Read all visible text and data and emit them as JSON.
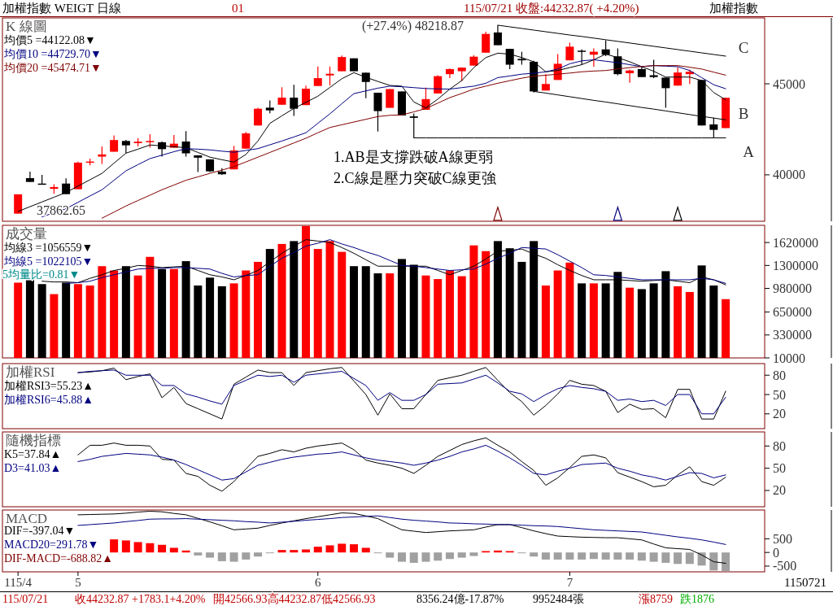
{
  "chart_data": [
    {
      "type": "candlestick",
      "title": "K 線圖",
      "legend": "top left",
      "tick_labels": "y",
      "ylim": [
        37450,
        48620
      ],
      "yticks": [
        40000,
        45000
      ],
      "categories": [
        null,
        null,
        null,
        null,
        null,
        null,
        null,
        null,
        null,
        null,
        null,
        null,
        null,
        null,
        null,
        null,
        null,
        null,
        null,
        null,
        null,
        null,
        null,
        null,
        null,
        null,
        null,
        null,
        null,
        null,
        null,
        null,
        null,
        null,
        null,
        null,
        null,
        null,
        null,
        null,
        null,
        null,
        null,
        null,
        null,
        null,
        null,
        null,
        null,
        null,
        null,
        null,
        null,
        null,
        null,
        null,
        null,
        null,
        null,
        null
      ],
      "ohlc": [
        [
          37870,
          38930,
          37862.65,
          38930
        ],
        [
          39820,
          40180,
          39610,
          39610
        ],
        [
          39520,
          40000,
          39510,
          39510
        ],
        [
          39230,
          39480,
          38960,
          39330
        ],
        [
          39520,
          39810,
          38940,
          38940
        ],
        [
          39210,
          40720,
          39210,
          40670
        ],
        [
          40670,
          40890,
          40520,
          40730
        ],
        [
          41000,
          41560,
          40600,
          41120
        ],
        [
          41270,
          42160,
          41270,
          41910
        ],
        [
          41860,
          41920,
          41190,
          41620
        ],
        [
          41740,
          42010,
          41560,
          41820
        ],
        [
          41800,
          42230,
          41490,
          41860
        ],
        [
          41790,
          41830,
          41000,
          41410
        ],
        [
          41490,
          42190,
          41490,
          41710
        ],
        [
          41830,
          42400,
          41000,
          41180
        ],
        [
          41070,
          41070,
          40150,
          40940
        ],
        [
          40850,
          40850,
          40150,
          40190
        ],
        [
          40180,
          40370,
          40000,
          40030
        ],
        [
          40300,
          41590,
          40300,
          41340
        ],
        [
          41440,
          42350,
          41440,
          42280
        ],
        [
          42710,
          43680,
          42710,
          43630
        ],
        [
          43690,
          44090,
          43380,
          43540
        ],
        [
          43850,
          44810,
          43850,
          44240
        ],
        [
          44240,
          44940,
          43240,
          43630
        ],
        [
          43830,
          44900,
          43830,
          44730
        ],
        [
          44880,
          45950,
          44880,
          45310
        ],
        [
          45460,
          45950,
          44910,
          45550
        ],
        [
          45690,
          46550,
          45690,
          46470
        ],
        [
          46400,
          46400,
          45690,
          45690
        ],
        [
          45610,
          45610,
          44210,
          45100
        ],
        [
          44510,
          44510,
          42380,
          43500
        ],
        [
          43680,
          44710,
          43680,
          44710
        ],
        [
          44580,
          44580,
          43260,
          43260
        ],
        [
          43210,
          43370,
          42030,
          43130
        ],
        [
          43570,
          44790,
          43570,
          44160
        ],
        [
          44470,
          45470,
          44470,
          45420
        ],
        [
          45530,
          45840,
          45310,
          45810
        ],
        [
          45690,
          45890,
          45150,
          45890
        ],
        [
          46000,
          46570,
          46000,
          46490
        ],
        [
          46710,
          47860,
          46710,
          47740
        ],
        [
          47820,
          48218.87,
          47120,
          47120
        ],
        [
          46920,
          46920,
          45810,
          46050
        ],
        [
          46370,
          46760,
          46050,
          46290
        ],
        [
          46210,
          46260,
          44520,
          44580
        ],
        [
          44630,
          45530,
          44630,
          44990
        ],
        [
          45210,
          46630,
          45210,
          46100
        ],
        [
          46290,
          47260,
          46290,
          47040
        ],
        [
          46820,
          46890,
          46050,
          46780
        ],
        [
          46600,
          46950,
          45940,
          46760
        ],
        [
          46890,
          47390,
          46520,
          46600
        ],
        [
          46510,
          46950,
          45470,
          45530
        ],
        [
          45580,
          45780,
          45060,
          45730
        ],
        [
          45810,
          45940,
          45370,
          45370
        ],
        [
          45470,
          46320,
          45310,
          45370
        ],
        [
          45340,
          45340,
          43680,
          44760
        ],
        [
          44900,
          45890,
          44900,
          45620
        ],
        [
          45530,
          45780,
          44990,
          45660
        ],
        [
          45210,
          45210,
          42710,
          42710
        ],
        [
          42770,
          43130,
          42030,
          42470
        ],
        [
          42566.93,
          44232.87,
          42566.93,
          44232.87
        ]
      ],
      "colors": [
        "#ff0000",
        "#000000",
        "#000000",
        "#ff0000",
        "#000000",
        "#ff0000",
        "#ff0000",
        "#ff0000",
        "#ff0000",
        "#000000",
        "#ff0000",
        "#ff0000",
        "#000000",
        "#ff0000",
        "#000000",
        "#000000",
        "#000000",
        "#000000",
        "#ff0000",
        "#ff0000",
        "#ff0000",
        "#000000",
        "#ff0000",
        "#000000",
        "#ff0000",
        "#ff0000",
        "#ff0000",
        "#ff0000",
        "#000000",
        "#000000",
        "#000000",
        "#ff0000",
        "#000000",
        "#000000",
        "#ff0000",
        "#ff0000",
        "#ff0000",
        "#ff0000",
        "#ff0000",
        "#ff0000",
        "#000000",
        "#000000",
        "#000000",
        "#000000",
        "#ff0000",
        "#ff0000",
        "#ff0000",
        "#000000",
        "#ff0000",
        "#000000",
        "#000000",
        "#ff0000",
        "#000000",
        "#000000",
        "#000000",
        "#ff0000",
        "#ff0000",
        "#000000",
        "#000000",
        "#ff0000"
      ],
      "series": [
        {
          "name": "均價5 =44122.08▼",
          "type": "line",
          "color": "#000000",
          "values": [
            37990,
            38250,
            38510,
            38770,
            39030,
            39380,
            39730,
            40080,
            40640,
            41190,
            41410,
            41640,
            41590,
            41540,
            41490,
            41230,
            40970,
            40830,
            40700,
            41120,
            41860,
            42830,
            43240,
            43650,
            43980,
            44320,
            44800,
            45280,
            45610,
            45360,
            45130,
            44910,
            44870,
            44000,
            43680,
            44160,
            44710,
            45180,
            45890,
            46440,
            46680,
            46630,
            46440,
            46210,
            45660,
            45730,
            45890,
            46050,
            46320,
            46630,
            46440,
            46210,
            45940,
            45690,
            45370,
            45370,
            45370,
            45180,
            44520,
            44122.08
          ]
        },
        {
          "name": "均價10 =44729.70▼",
          "type": "line",
          "color": "#000080",
          "values": [
            null,
            null,
            37690,
            37920,
            38140,
            38490,
            38840,
            39180,
            39700,
            40220,
            40560,
            40890,
            41080,
            41270,
            41440,
            41410,
            41370,
            41300,
            41240,
            41340,
            41440,
            41650,
            41860,
            42080,
            42310,
            42830,
            43350,
            43910,
            44460,
            44610,
            44760,
            44870,
            44840,
            44790,
            44740,
            44720,
            44710,
            44790,
            44870,
            45030,
            45340,
            45430,
            45530,
            45580,
            45660,
            45810,
            46100,
            46260,
            46320,
            46240,
            46160,
            46050,
            45940,
            46000,
            45970,
            45940,
            45730,
            45340,
            44950,
            44729.7
          ]
        },
        {
          "name": "均價20 =45474.71▼",
          "type": "line",
          "color": "#800000",
          "values": [
            null,
            null,
            null,
            null,
            null,
            null,
            null,
            37620,
            37950,
            38290,
            38590,
            38880,
            39180,
            39440,
            39700,
            39890,
            40080,
            40260,
            40450,
            40710,
            40970,
            41230,
            41490,
            41750,
            42010,
            42310,
            42600,
            42750,
            42900,
            43050,
            43200,
            43270,
            43290,
            43460,
            43640,
            43940,
            44240,
            44470,
            44710,
            44870,
            45030,
            45170,
            45310,
            45420,
            45470,
            45530,
            45590,
            45660,
            45700,
            45730,
            45810,
            45890,
            45950,
            46000,
            46000,
            46000,
            45910,
            45810,
            45640,
            45474.71
          ]
        },
        {
          "type": "line",
          "color": "#000000",
          "values": [
            null,
            null,
            null,
            null,
            null,
            null,
            null,
            null,
            null,
            null,
            null,
            null,
            null,
            null,
            null,
            null,
            null,
            null,
            null,
            null,
            null,
            null,
            null,
            null,
            null,
            null,
            null,
            null,
            null,
            null,
            null,
            null,
            null,
            null,
            null,
            null,
            null,
            null,
            null,
            null,
            48218.87,
            48130,
            48040,
            47950,
            47860,
            47770,
            47680,
            47600,
            47510,
            47420,
            47330,
            47240,
            47150,
            47060,
            46970,
            46880,
            46790,
            46700,
            46610,
            46520
          ]
        },
        {
          "type": "line",
          "color": "#000000",
          "values": [
            null,
            null,
            null,
            null,
            null,
            null,
            null,
            null,
            null,
            null,
            null,
            null,
            null,
            null,
            null,
            null,
            null,
            null,
            null,
            null,
            null,
            null,
            null,
            null,
            null,
            null,
            null,
            null,
            null,
            null,
            null,
            null,
            null,
            null,
            null,
            null,
            null,
            null,
            null,
            null,
            null,
            null,
            null,
            44580,
            44490,
            44390,
            44290,
            44190,
            44090,
            44000,
            43900,
            43800,
            43700,
            43610,
            43510,
            43410,
            43310,
            43210,
            43120,
            43020
          ]
        },
        {
          "type": "line",
          "color": "#000000",
          "values": [
            null,
            null,
            null,
            null,
            null,
            null,
            null,
            null,
            null,
            null,
            null,
            null,
            null,
            null,
            null,
            null,
            null,
            null,
            null,
            null,
            null,
            null,
            null,
            null,
            null,
            null,
            null,
            null,
            null,
            null,
            null,
            null,
            null,
            42030,
            42030,
            42030,
            42030,
            42030,
            42030,
            42030,
            42030,
            42030,
            42030,
            42030,
            42030,
            42030,
            42030,
            42030,
            42030,
            42030,
            42030,
            42030,
            42030,
            42030,
            42030,
            42030,
            42030,
            42030,
            42030,
            42030
          ]
        },
        {
          "type": "scatter",
          "marker": "triangle",
          "color": "#800000",
          "values": [
            null,
            null,
            null,
            null,
            null,
            null,
            null,
            null,
            null,
            null,
            null,
            null,
            null,
            null,
            null,
            null,
            null,
            null,
            null,
            null,
            null,
            null,
            null,
            null,
            null,
            null,
            null,
            null,
            null,
            null,
            null,
            null,
            null,
            null,
            null,
            null,
            null,
            null,
            null,
            null,
            37860,
            null,
            null,
            null,
            null,
            null,
            null,
            null,
            null,
            null,
            null,
            null,
            null,
            null,
            null,
            null,
            null,
            null,
            null,
            null
          ]
        },
        {
          "type": "scatter",
          "marker": "triangle",
          "color": "#000080",
          "values": [
            null,
            null,
            null,
            null,
            null,
            null,
            null,
            null,
            null,
            null,
            null,
            null,
            null,
            null,
            null,
            null,
            null,
            null,
            null,
            null,
            null,
            null,
            null,
            null,
            null,
            null,
            null,
            null,
            null,
            null,
            null,
            null,
            null,
            null,
            null,
            null,
            null,
            null,
            null,
            null,
            null,
            null,
            null,
            null,
            null,
            null,
            null,
            null,
            null,
            null,
            37860,
            null,
            null,
            null,
            null,
            null,
            null,
            null,
            null,
            null
          ]
        },
        {
          "type": "scatter",
          "marker": "triangle",
          "color": "#000000",
          "values": [
            null,
            null,
            null,
            null,
            null,
            null,
            null,
            null,
            null,
            null,
            null,
            null,
            null,
            null,
            null,
            null,
            null,
            null,
            null,
            null,
            null,
            null,
            null,
            null,
            null,
            null,
            null,
            null,
            null,
            null,
            null,
            null,
            null,
            null,
            null,
            null,
            null,
            null,
            null,
            null,
            null,
            null,
            null,
            null,
            null,
            null,
            null,
            null,
            null,
            null,
            null,
            null,
            null,
            null,
            null,
            37860,
            null,
            null,
            null,
            null
          ]
        }
      ],
      "annotations": [
        "加權指數 WEIGT 日線",
        "01",
        "115/07/21 收盤:44232.87( +4.20%)",
        "加權指數",
        "1.AB是支撐跌破A線更弱",
        "2.C線是壓力突破C線更強",
        "C",
        "B",
        "A",
        "(+27.4%) 48218.87",
        "37862.65"
      ]
    },
    {
      "type": "bar",
      "title": "成交量",
      "legend": "top left",
      "tick_labels": "y",
      "ylim": [
        10000,
        1860000
      ],
      "yticks": [
        10000,
        330000,
        650000,
        980000,
        1300000,
        1620000
      ],
      "categories": [
        null,
        null,
        null,
        null,
        null,
        null,
        null,
        null,
        null,
        null,
        null,
        null,
        null,
        null,
        null,
        null,
        null,
        null,
        null,
        null,
        null,
        null,
        null,
        null,
        null,
        null,
        null,
        null,
        null,
        null,
        null,
        null,
        null,
        null,
        null,
        null,
        null,
        null,
        null,
        null,
        null,
        null,
        null,
        null,
        null,
        null,
        null,
        null,
        null,
        null,
        null,
        null,
        null,
        null,
        null,
        null,
        null,
        null,
        null,
        null
      ],
      "series": [
        {
          "type": "bar",
          "colors": [
            "#ff0000",
            "#000000",
            "#000000",
            "#ff0000",
            "#000000",
            "#ff0000",
            "#ff0000",
            "#ff0000",
            "#ff0000",
            "#000000",
            "#ff0000",
            "#ff0000",
            "#000000",
            "#ff0000",
            "#000000",
            "#000000",
            "#000000",
            "#000000",
            "#ff0000",
            "#ff0000",
            "#ff0000",
            "#000000",
            "#ff0000",
            "#000000",
            "#ff0000",
            "#ff0000",
            "#ff0000",
            "#ff0000",
            "#000000",
            "#000000",
            "#000000",
            "#ff0000",
            "#000000",
            "#000000",
            "#ff0000",
            "#ff0000",
            "#ff0000",
            "#ff0000",
            "#ff0000",
            "#ff0000",
            "#000000",
            "#000000",
            "#000000",
            "#000000",
            "#ff0000",
            "#ff0000",
            "#ff0000",
            "#000000",
            "#ff0000",
            "#000000",
            "#000000",
            "#ff0000",
            "#000000",
            "#000000",
            "#000000",
            "#ff0000",
            "#ff0000",
            "#000000",
            "#000000",
            "#ff0000"
          ],
          "values": [
            1060000,
            1110000,
            1040000,
            900000,
            1060000,
            1040000,
            1020000,
            1290000,
            1230000,
            1290000,
            1160000,
            1420000,
            1250000,
            1250000,
            1360000,
            1020000,
            1130000,
            1010000,
            1050000,
            1230000,
            1350000,
            1530000,
            1600000,
            1640000,
            1850000,
            1530000,
            1640000,
            1490000,
            1290000,
            1290000,
            1190000,
            1190000,
            1390000,
            1310000,
            1160000,
            1110000,
            1230000,
            1150000,
            1580000,
            1500000,
            1640000,
            1540000,
            1350000,
            1640000,
            1020000,
            1230000,
            1340000,
            1050000,
            1050000,
            1050000,
            1210000,
            990000,
            970000,
            1050000,
            1220000,
            1010000,
            930000,
            1300000,
            1020000,
            830000
          ]
        },
        {
          "name": "均線3 =1056559▼",
          "type": "line",
          "color": "#000000",
          "values": [
            null,
            null,
            1080000,
            1070000,
            1070000,
            1060000,
            1120000,
            1170000,
            1230000,
            1260000,
            1300000,
            1290000,
            1270000,
            1280000,
            1290000,
            1230000,
            1170000,
            1140000,
            1100000,
            1160000,
            1230000,
            1350000,
            1470000,
            1570000,
            1660000,
            1640000,
            1620000,
            1550000,
            1470000,
            1380000,
            1290000,
            1290000,
            1290000,
            1290000,
            1290000,
            1230000,
            1170000,
            1230000,
            1290000,
            1390000,
            1500000,
            1510000,
            1530000,
            1460000,
            1400000,
            1310000,
            1230000,
            1160000,
            1100000,
            1100000,
            1100000,
            1090000,
            1080000,
            1090000,
            1100000,
            1080000,
            1060000,
            1140000,
            1100000,
            1030000
          ]
        },
        {
          "name": "均線5 =1022105▼",
          "type": "line",
          "color": "#000080",
          "values": [
            null,
            null,
            null,
            null,
            1050000,
            1060000,
            1080000,
            1130000,
            1170000,
            1210000,
            1250000,
            1260000,
            1260000,
            1270000,
            1270000,
            1260000,
            1250000,
            1190000,
            1140000,
            1160000,
            1170000,
            1290000,
            1400000,
            1480000,
            1570000,
            1610000,
            1660000,
            1600000,
            1550000,
            1490000,
            1440000,
            1370000,
            1300000,
            1290000,
            1270000,
            1250000,
            1230000,
            1240000,
            1250000,
            1320000,
            1400000,
            1470000,
            1550000,
            1540000,
            1530000,
            1450000,
            1360000,
            1270000,
            1170000,
            1160000,
            1140000,
            1120000,
            1100000,
            1100000,
            1100000,
            1100000,
            1100000,
            1120000,
            1100000,
            1050000
          ]
        }
      ],
      "annotations": [
        "5均量比=0.81▼"
      ]
    },
    {
      "type": "line",
      "title": "加權RSI",
      "legend": "top left",
      "tick_labels": "y",
      "ylim": [
        -3,
        98
      ],
      "yticks": [
        20,
        50,
        80
      ],
      "categories": [
        null,
        null,
        null,
        null,
        null,
        null,
        null,
        null,
        null,
        null,
        null,
        null,
        null,
        null,
        null,
        null,
        null,
        null,
        null,
        null,
        null,
        null,
        null,
        null,
        null,
        null,
        null,
        null,
        null,
        null,
        null,
        null,
        null,
        null,
        null,
        null,
        null,
        null,
        null,
        null,
        null,
        null,
        null,
        null,
        null,
        null,
        null,
        null,
        null,
        null,
        null,
        null,
        null,
        null,
        null,
        null,
        null,
        null,
        null,
        null
      ],
      "series": [
        {
          "name": "加權RSI3=55.23▲",
          "color": "#000000",
          "values": [
            null,
            null,
            null,
            null,
            null,
            84,
            85,
            87,
            91,
            73,
            78,
            82,
            45,
            61,
            36,
            28,
            20,
            12,
            66,
            77,
            88,
            84,
            84,
            64,
            84,
            87,
            90,
            92,
            71,
            50,
            18,
            51,
            28,
            28,
            50,
            72,
            76,
            80,
            86,
            92,
            72,
            53,
            39,
            18,
            33,
            51,
            72,
            66,
            64,
            55,
            22,
            35,
            27,
            28,
            14,
            58,
            58,
            12,
            12,
            55.23
          ]
        },
        {
          "name": "加權RSI6=45.88▲",
          "color": "#000080",
          "values": [
            null,
            null,
            null,
            null,
            null,
            84,
            86,
            87,
            88,
            80,
            80,
            80,
            64,
            64,
            51,
            46,
            40,
            35,
            64,
            72,
            80,
            78,
            80,
            69,
            80,
            82,
            84,
            86,
            75,
            64,
            41,
            53,
            41,
            41,
            50,
            66,
            67,
            68,
            74,
            80,
            68,
            55,
            51,
            39,
            50,
            59,
            64,
            61,
            59,
            55,
            41,
            43,
            39,
            41,
            33,
            50,
            50,
            20,
            20,
            45.88
          ]
        }
      ]
    },
    {
      "type": "line",
      "title": "隨機指標",
      "legend": "top left",
      "tick_labels": "y",
      "ylim": [
        -2,
        99
      ],
      "yticks": [
        20,
        50,
        80
      ],
      "categories": [
        null,
        null,
        null,
        null,
        null,
        null,
        null,
        null,
        null,
        null,
        null,
        null,
        null,
        null,
        null,
        null,
        null,
        null,
        null,
        null,
        null,
        null,
        null,
        null,
        null,
        null,
        null,
        null,
        null,
        null,
        null,
        null,
        null,
        null,
        null,
        null,
        null,
        null,
        null,
        null,
        null,
        null,
        null,
        null,
        null,
        null,
        null,
        null,
        null,
        null,
        null,
        null,
        null,
        null,
        null,
        null,
        null,
        null,
        null,
        null
      ],
      "series": [
        {
          "name": "K5=37.84▲",
          "color": "#000000",
          "values": [
            null,
            null,
            null,
            null,
            null,
            68,
            81,
            81,
            84,
            81,
            81,
            80,
            62,
            61,
            43,
            39,
            27,
            19,
            32,
            49,
            66,
            70,
            75,
            72,
            77,
            80,
            82,
            84,
            75,
            61,
            57,
            54,
            50,
            43,
            54,
            66,
            74,
            82,
            87,
            91,
            81,
            72,
            59,
            47,
            27,
            37,
            51,
            66,
            68,
            64,
            44,
            38,
            32,
            25,
            27,
            41,
            52,
            32,
            27,
            37.84
          ]
        },
        {
          "name": "D3=41.03▲",
          "color": "#000080",
          "values": [
            null,
            null,
            null,
            null,
            null,
            59,
            62,
            66,
            68,
            70,
            69,
            68,
            65,
            61,
            55,
            48,
            41,
            34,
            36,
            45,
            54,
            58,
            62,
            65,
            67,
            69,
            70,
            72,
            68,
            64,
            61,
            59,
            57,
            54,
            57,
            61,
            66,
            72,
            76,
            81,
            73,
            64,
            54,
            43,
            41,
            46,
            50,
            55,
            56,
            57,
            50,
            46,
            41,
            38,
            34,
            39,
            44,
            43,
            37,
            41.03
          ]
        }
      ]
    },
    {
      "type": "bar",
      "title": "MACD",
      "legend": "left",
      "ylim": [
        -710,
        1555
      ],
      "yticks": [
        -500,
        0,
        500
      ],
      "categories": [
        "115/4",
        null,
        null,
        null,
        null,
        "5",
        null,
        null,
        null,
        null,
        null,
        null,
        null,
        null,
        null,
        null,
        null,
        null,
        null,
        null,
        null,
        null,
        null,
        null,
        null,
        "6",
        null,
        null,
        null,
        null,
        null,
        null,
        null,
        null,
        null,
        null,
        null,
        null,
        null,
        null,
        null,
        null,
        null,
        null,
        null,
        null,
        "7",
        null,
        null,
        null,
        null,
        null,
        null,
        null,
        null,
        null,
        null,
        null,
        null,
        null
      ],
      "series": [
        {
          "name": "DIF=-397.04▼",
          "type": "line",
          "color": "#000000",
          "values": [
            null,
            null,
            null,
            null,
            null,
            1380,
            1390,
            1400,
            1410,
            1440,
            1480,
            1510,
            1490,
            1430,
            1380,
            1250,
            1120,
            980,
            830,
            860,
            890,
            990,
            1080,
            1160,
            1240,
            1310,
            1380,
            1450,
            1430,
            1340,
            1240,
            1030,
            830,
            780,
            730,
            760,
            790,
            810,
            830,
            930,
            1020,
            1020,
            910,
            790,
            690,
            600,
            580,
            560,
            550,
            540,
            540,
            500,
            460,
            310,
            170,
            140,
            110,
            -90,
            -340,
            -397.04
          ]
        },
        {
          "name": "MACD20=291.78▼",
          "type": "line",
          "color": "#000080",
          "values": [
            null,
            null,
            null,
            null,
            null,
            990,
            1020,
            1050,
            1080,
            1130,
            1170,
            1220,
            1230,
            1230,
            1240,
            1220,
            1200,
            1180,
            1160,
            1130,
            1110,
            1080,
            1110,
            1140,
            1180,
            1210,
            1240,
            1280,
            1300,
            1320,
            1340,
            1280,
            1220,
            1180,
            1150,
            1120,
            1080,
            1070,
            1050,
            1040,
            1020,
            1020,
            1000,
            980,
            970,
            950,
            910,
            870,
            830,
            810,
            790,
            770,
            750,
            690,
            630,
            570,
            520,
            460,
            380,
            291.78
          ]
        },
        {
          "name": "DIF-MACD=-688.82▲",
          "type": "bar",
          "color": "#800000",
          "values": [
            null,
            null,
            null,
            null,
            null,
            null,
            null,
            null,
            480,
            440,
            380,
            340,
            280,
            170,
            70,
            -110,
            -190,
            -320,
            -340,
            -260,
            -150,
            -30,
            90,
            90,
            110,
            210,
            260,
            320,
            300,
            170,
            -30,
            -190,
            -340,
            -380,
            -340,
            -300,
            -240,
            -190,
            -130,
            50,
            70,
            50,
            -30,
            -150,
            -260,
            -260,
            -260,
            -260,
            -240,
            -260,
            -260,
            -260,
            -300,
            -340,
            -380,
            -420,
            -420,
            -480,
            -660,
            -688.82
          ],
          "colors": [
            null,
            null,
            null,
            null,
            null,
            null,
            null,
            null,
            "#ff0000",
            "#ff0000",
            "#ff0000",
            "#ff0000",
            "#ff0000",
            "#ff0000",
            "#ff0000",
            "#a0a0a0",
            "#a0a0a0",
            "#a0a0a0",
            "#a0a0a0",
            "#a0a0a0",
            "#a0a0a0",
            "#a0a0a0",
            "#ff0000",
            "#ff0000",
            "#ff0000",
            "#ff0000",
            "#ff0000",
            "#ff0000",
            "#ff0000",
            "#ff0000",
            "#a0a0a0",
            "#a0a0a0",
            "#a0a0a0",
            "#a0a0a0",
            "#a0a0a0",
            "#a0a0a0",
            "#a0a0a0",
            "#a0a0a0",
            "#a0a0a0",
            "#ff0000",
            "#ff0000",
            "#ff0000",
            "#a0a0a0",
            "#a0a0a0",
            "#a0a0a0",
            "#a0a0a0",
            "#a0a0a0",
            "#a0a0a0",
            "#a0a0a0",
            "#a0a0a0",
            "#a0a0a0",
            "#a0a0a0",
            "#a0a0a0",
            "#a0a0a0",
            "#a0a0a0",
            "#a0a0a0",
            "#a0a0a0",
            "#a0a0a0",
            "#a0a0a0",
            "#a0a0a0"
          ]
        }
      ],
      "annotations": [
        "1150721",
        "115/07/21",
        "收44232.87 +1783.1+4.20%",
        "開42566.93高44232.87低42566.93",
        "8356.24億-17.87%",
        "9952484張",
        "漲8759",
        "跌1876"
      ]
    }
  ]
}
